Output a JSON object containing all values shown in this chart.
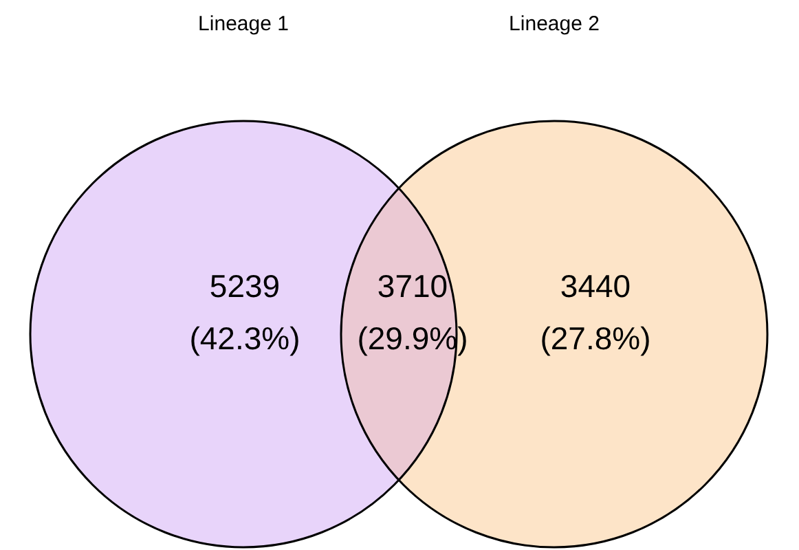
{
  "chart_data": {
    "type": "other",
    "annotations": [
      "Lineage 1",
      "Lineage 2",
      "(42.3%)",
      "(29.9%)",
      "(27.8%)"
    ],
    "categories": [
      null,
      null,
      null
    ],
    "values": [
      5239,
      3710,
      3440
    ],
    "data_labels": true,
    "colors": [
      "#e8d4fa",
      "#ebc9d3",
      "#fde4c8"
    ]
  }
}
